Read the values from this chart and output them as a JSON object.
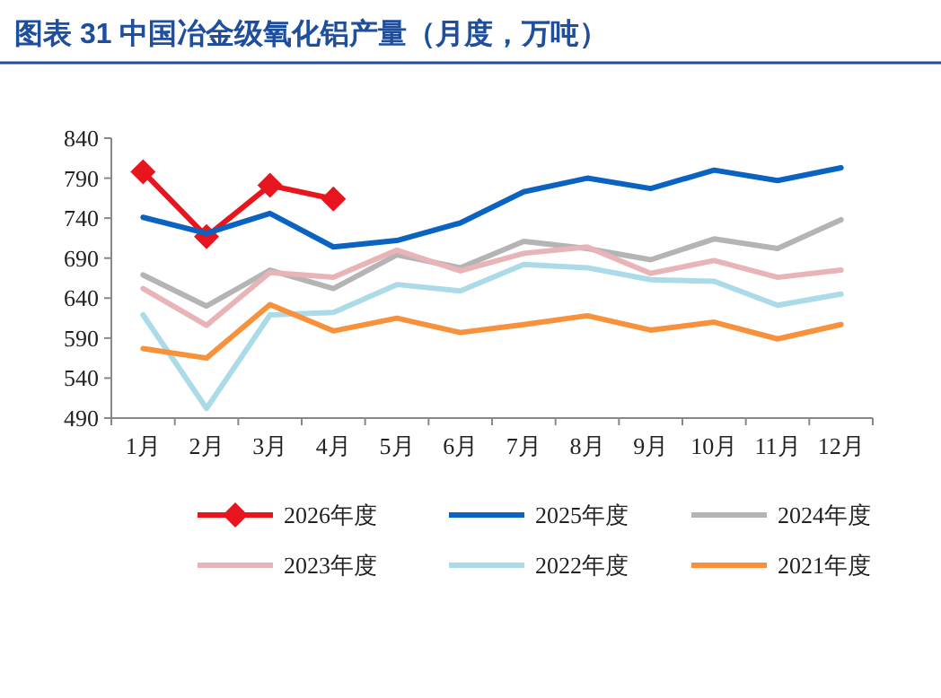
{
  "chart_data": {
    "type": "line",
    "title": "图表 31    中国冶金级氧化铝产量（月度，万吨）",
    "categories": [
      "1月",
      "2月",
      "3月",
      "4月",
      "5月",
      "6月",
      "7月",
      "8月",
      "9月",
      "10月",
      "11月",
      "12月"
    ],
    "ylim": [
      490,
      840
    ],
    "yticks": [
      490,
      540,
      590,
      640,
      690,
      740,
      790,
      840
    ],
    "grid": false,
    "legend": "bottom",
    "series": [
      {
        "name": "2026年度",
        "color": "#e8141e",
        "marker": "diamond",
        "values": [
          798,
          717,
          781,
          764,
          null,
          null,
          null,
          null,
          null,
          null,
          null,
          null
        ]
      },
      {
        "name": "2025年度",
        "color": "#0a63c0",
        "values": [
          741,
          721,
          746,
          704,
          712,
          734,
          773,
          790,
          777,
          800,
          787,
          803
        ]
      },
      {
        "name": "2024年度",
        "color": "#b4b4b4",
        "values": [
          669,
          630,
          675,
          652,
          694,
          678,
          711,
          702,
          688,
          714,
          702,
          738
        ]
      },
      {
        "name": "2023年度",
        "color": "#e8b4b8",
        "values": [
          652,
          606,
          672,
          666,
          700,
          674,
          696,
          704,
          671,
          687,
          666,
          675
        ]
      },
      {
        "name": "2022年度",
        "color": "#abdbe8",
        "values": [
          619,
          502,
          619,
          622,
          657,
          649,
          682,
          678,
          663,
          661,
          631,
          645
        ]
      },
      {
        "name": "2021年度",
        "color": "#f7913c",
        "values": [
          577,
          565,
          632,
          599,
          615,
          597,
          607,
          618,
          600,
          610,
          589,
          607
        ]
      }
    ]
  }
}
